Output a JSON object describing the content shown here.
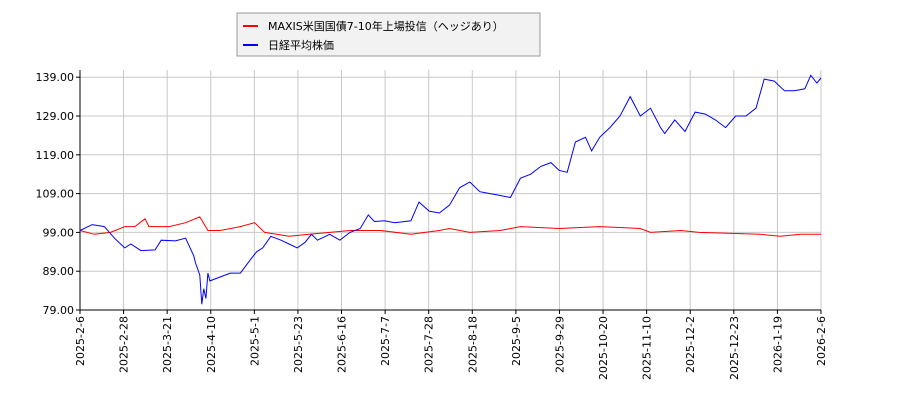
{
  "chart_data": {
    "type": "line",
    "title": "",
    "xlabel": "",
    "ylabel": "",
    "ylim": [
      79,
      141
    ],
    "xlim": [
      "2025-02-06",
      "2026-02-06"
    ],
    "grid": true,
    "legend_placement": "top-center",
    "y_ticks": [
      "79.00",
      "89.00",
      "99.00",
      "109.00",
      "119.00",
      "129.00",
      "139.00"
    ],
    "x_ticks": [
      "2025-2-6",
      "2025-2-28",
      "2025-3-21",
      "2025-4-10",
      "2025-5-1",
      "2025-5-23",
      "2025-6-16",
      "2025-7-7",
      "2025-7-28",
      "2025-8-18",
      "2025-9-5",
      "2025-9-29",
      "2025-10-20",
      "2025-11-10",
      "2025-12-2",
      "2025-12-23",
      "2026-1-19",
      "2026-2-6"
    ],
    "series": [
      {
        "name": "MAXIS米国国債7-10年上場投信（ヘッジあり）",
        "color": "#ff0000",
        "points": [
          [
            "2025-02-06",
            99.5
          ],
          [
            "2025-02-13",
            98.5
          ],
          [
            "2025-02-21",
            99
          ],
          [
            "2025-02-28",
            100.5
          ],
          [
            "2025-03-05",
            100.5
          ],
          [
            "2025-03-10",
            102.5
          ],
          [
            "2025-03-12",
            100.5
          ],
          [
            "2025-03-22",
            100.5
          ],
          [
            "2025-03-30",
            101.5
          ],
          [
            "2025-04-06",
            103
          ],
          [
            "2025-04-10",
            99.5
          ],
          [
            "2025-04-16",
            99.5
          ],
          [
            "2025-04-26",
            100.5
          ],
          [
            "2025-05-03",
            101.5
          ],
          [
            "2025-05-08",
            99
          ],
          [
            "2025-05-20",
            98
          ],
          [
            "2025-05-30",
            98.5
          ],
          [
            "2025-06-19",
            99.5
          ],
          [
            "2025-07-04",
            99.5
          ],
          [
            "2025-07-19",
            98.5
          ],
          [
            "2025-08-02",
            99.5
          ],
          [
            "2025-08-07",
            100
          ],
          [
            "2025-08-17",
            99
          ],
          [
            "2025-09-01",
            99.5
          ],
          [
            "2025-09-11",
            100.5
          ],
          [
            "2025-09-30",
            100
          ],
          [
            "2025-10-20",
            100.5
          ],
          [
            "2025-11-09",
            100
          ],
          [
            "2025-11-14",
            99
          ],
          [
            "2025-11-29",
            99.5
          ],
          [
            "2025-12-08",
            99
          ],
          [
            "2026-01-07",
            98.5
          ],
          [
            "2026-01-17",
            98
          ],
          [
            "2026-01-27",
            98.5
          ],
          [
            "2026-02-06",
            98.5
          ]
        ]
      },
      {
        "name": "日経平均株価",
        "color": "#0000ff",
        "points": [
          [
            "2025-02-06",
            99.5
          ],
          [
            "2025-02-12",
            101
          ],
          [
            "2025-02-18",
            100.5
          ],
          [
            "2025-02-23",
            97.5
          ],
          [
            "2025-02-28",
            95
          ],
          [
            "2025-03-03",
            96
          ],
          [
            "2025-03-08",
            94.3
          ],
          [
            "2025-03-15",
            94.5
          ],
          [
            "2025-03-18",
            97
          ],
          [
            "2025-03-25",
            96.8
          ],
          [
            "2025-03-30",
            97.5
          ],
          [
            "2025-04-03",
            93
          ],
          [
            "2025-04-04",
            91
          ],
          [
            "2025-04-06",
            88
          ],
          [
            "2025-04-07",
            80.5
          ],
          [
            "2025-04-08",
            84.5
          ],
          [
            "2025-04-09",
            82
          ],
          [
            "2025-04-10",
            88.5
          ],
          [
            "2025-04-11",
            86.5
          ],
          [
            "2025-04-21",
            88.5
          ],
          [
            "2025-04-26",
            88.5
          ],
          [
            "2025-05-01",
            92
          ],
          [
            "2025-05-04",
            94
          ],
          [
            "2025-05-07",
            95
          ],
          [
            "2025-05-11",
            98
          ],
          [
            "2025-05-16",
            97
          ],
          [
            "2025-05-20",
            96
          ],
          [
            "2025-05-24",
            95
          ],
          [
            "2025-05-28",
            96.5
          ],
          [
            "2025-05-31",
            98.5
          ],
          [
            "2025-06-03",
            97
          ],
          [
            "2025-06-09",
            98.5
          ],
          [
            "2025-06-14",
            97
          ],
          [
            "2025-06-19",
            99
          ],
          [
            "2025-06-24",
            100
          ],
          [
            "2025-06-28",
            103.5
          ],
          [
            "2025-07-01",
            101.8
          ],
          [
            "2025-07-06",
            102
          ],
          [
            "2025-07-11",
            101.5
          ],
          [
            "2025-07-19",
            102
          ],
          [
            "2025-07-23",
            106.8
          ],
          [
            "2025-07-28",
            104.5
          ],
          [
            "2025-08-02",
            104
          ],
          [
            "2025-08-07",
            106
          ],
          [
            "2025-08-12",
            110.5
          ],
          [
            "2025-08-17",
            112
          ],
          [
            "2025-08-22",
            109.5
          ],
          [
            "2025-08-27",
            109
          ],
          [
            "2025-09-01",
            108.5
          ],
          [
            "2025-09-06",
            108
          ],
          [
            "2025-09-11",
            113
          ],
          [
            "2025-09-16",
            114
          ],
          [
            "2025-09-21",
            116
          ],
          [
            "2025-09-26",
            117
          ],
          [
            "2025-09-30",
            115
          ],
          [
            "2025-10-04",
            114.5
          ],
          [
            "2025-10-08",
            122.3
          ],
          [
            "2025-10-13",
            123.5
          ],
          [
            "2025-10-16",
            120
          ],
          [
            "2025-10-20",
            123.5
          ],
          [
            "2025-10-25",
            126
          ],
          [
            "2025-10-30",
            129
          ],
          [
            "2025-11-04",
            134
          ],
          [
            "2025-11-09",
            129
          ],
          [
            "2025-11-14",
            131
          ],
          [
            "2025-11-19",
            126
          ],
          [
            "2025-11-21",
            124.5
          ],
          [
            "2025-11-26",
            128
          ],
          [
            "2025-12-01",
            125
          ],
          [
            "2025-12-06",
            130
          ],
          [
            "2025-12-11",
            129.5
          ],
          [
            "2025-12-16",
            128
          ],
          [
            "2025-12-21",
            126
          ],
          [
            "2025-12-26",
            129
          ],
          [
            "2025-12-31",
            129
          ],
          [
            "2026-01-05",
            131
          ],
          [
            "2026-01-09",
            138.5
          ],
          [
            "2026-01-14",
            138
          ],
          [
            "2026-01-19",
            135.5
          ],
          [
            "2026-01-24",
            135.5
          ],
          [
            "2026-01-29",
            136
          ],
          [
            "2026-02-01",
            139.5
          ],
          [
            "2026-02-04",
            137.5
          ],
          [
            "2026-02-06",
            138.8
          ]
        ]
      }
    ]
  }
}
